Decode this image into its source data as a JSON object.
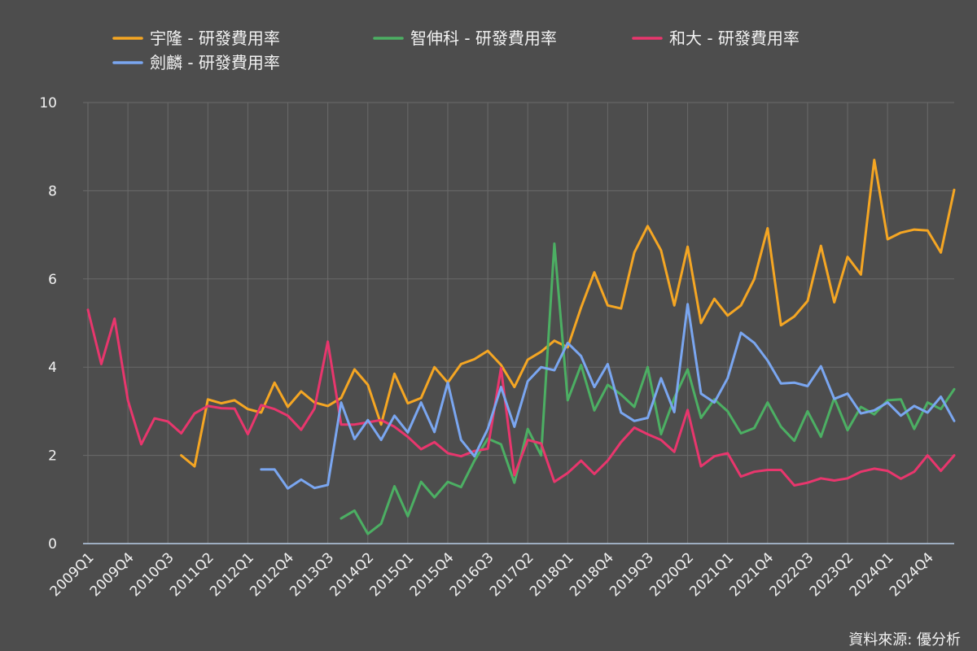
{
  "chart_data": {
    "type": "line",
    "ylim": [
      0,
      10
    ],
    "yticks": [
      0,
      2,
      4,
      6,
      8,
      10
    ],
    "grid": true,
    "legend_position": "top",
    "source": "資料來源: 優分析",
    "x": [
      "2009Q1",
      "2009Q2",
      "2009Q3",
      "2009Q4",
      "2010Q1",
      "2010Q2",
      "2010Q3",
      "2010Q4",
      "2011Q1",
      "2011Q2",
      "2011Q3",
      "2011Q4",
      "2012Q1",
      "2012Q2",
      "2012Q3",
      "2012Q4",
      "2013Q1",
      "2013Q2",
      "2013Q3",
      "2013Q4",
      "2014Q1",
      "2014Q2",
      "2014Q3",
      "2014Q4",
      "2015Q1",
      "2015Q2",
      "2015Q3",
      "2015Q4",
      "2016Q1",
      "2016Q2",
      "2016Q3",
      "2016Q4",
      "2017Q1",
      "2017Q2",
      "2017Q3",
      "2017Q4",
      "2018Q1",
      "2018Q2",
      "2018Q3",
      "2018Q4",
      "2019Q1",
      "2019Q2",
      "2019Q3",
      "2019Q4",
      "2020Q1",
      "2020Q2",
      "2020Q3",
      "2020Q4",
      "2021Q1",
      "2021Q2",
      "2021Q3",
      "2021Q4",
      "2022Q1",
      "2022Q2",
      "2022Q3",
      "2022Q4",
      "2023Q1",
      "2023Q2",
      "2023Q3",
      "2023Q4",
      "2024Q1",
      "2024Q2",
      "2024Q3",
      "2024Q4",
      "2025Q1",
      "2025Q2"
    ],
    "x_tick_labels": [
      "2009Q1",
      "2009Q4",
      "2010Q3",
      "2011Q2",
      "2012Q1",
      "2012Q4",
      "2013Q3",
      "2014Q2",
      "2015Q1",
      "2015Q4",
      "2016Q3",
      "2017Q2",
      "2018Q1",
      "2018Q4",
      "2019Q3",
      "2020Q2",
      "2021Q1",
      "2021Q4",
      "2022Q3",
      "2023Q2",
      "2024Q1",
      "2024Q4"
    ],
    "series": [
      {
        "name": "宇隆 - 研發費用率",
        "color": "#f5a623",
        "values": [
          null,
          null,
          null,
          null,
          null,
          null,
          null,
          2.0,
          1.75,
          3.27,
          3.18,
          3.25,
          3.05,
          2.97,
          3.65,
          3.1,
          3.45,
          3.2,
          3.12,
          3.3,
          3.95,
          3.6,
          2.7,
          3.85,
          3.18,
          3.3,
          4.0,
          3.65,
          4.07,
          4.18,
          4.37,
          4.05,
          3.55,
          4.17,
          4.35,
          4.6,
          4.45,
          5.35,
          6.15,
          5.4,
          5.33,
          6.6,
          7.2,
          6.65,
          5.4,
          6.73,
          5.0,
          5.55,
          5.17,
          5.4,
          6.0,
          7.15,
          4.95,
          5.15,
          5.5,
          6.75,
          5.47,
          6.5,
          6.1,
          8.7,
          6.9,
          7.05,
          7.12,
          7.1,
          6.6,
          8.02
        ]
      },
      {
        "name": "智伸科 - 研發費用率",
        "color": "#4caf63",
        "values": [
          null,
          null,
          null,
          null,
          null,
          null,
          null,
          null,
          null,
          null,
          null,
          null,
          null,
          null,
          null,
          null,
          null,
          null,
          null,
          0.57,
          0.75,
          0.22,
          0.45,
          1.3,
          0.62,
          1.4,
          1.05,
          1.4,
          1.28,
          1.88,
          2.38,
          2.25,
          1.38,
          2.6,
          2.0,
          6.8,
          3.25,
          4.05,
          3.02,
          3.6,
          3.38,
          3.1,
          4.0,
          2.48,
          3.3,
          3.95,
          2.85,
          3.27,
          3.0,
          2.5,
          2.62,
          3.2,
          2.65,
          2.33,
          3.0,
          2.42,
          3.3,
          2.57,
          3.1,
          2.93,
          3.25,
          3.27,
          2.6,
          3.2,
          3.05,
          3.5
        ]
      },
      {
        "name": "和大 - 研發費用率",
        "color": "#e8366d",
        "values": [
          5.3,
          4.07,
          5.1,
          3.25,
          2.25,
          2.84,
          2.77,
          2.5,
          2.95,
          3.12,
          3.07,
          3.06,
          2.48,
          3.14,
          3.05,
          2.9,
          2.58,
          3.06,
          4.58,
          2.7,
          2.7,
          2.75,
          2.8,
          2.65,
          2.42,
          2.14,
          2.3,
          2.05,
          1.98,
          2.1,
          2.15,
          3.98,
          1.55,
          2.35,
          2.27,
          1.4,
          1.6,
          1.88,
          1.58,
          1.88,
          2.3,
          2.63,
          2.48,
          2.35,
          2.08,
          3.03,
          1.75,
          1.98,
          2.05,
          1.52,
          1.63,
          1.67,
          1.67,
          1.32,
          1.38,
          1.48,
          1.43,
          1.48,
          1.63,
          1.7,
          1.65,
          1.47,
          1.63,
          2.0,
          1.65,
          2.0
        ]
      },
      {
        "name": "劍麟 - 研發費用率",
        "color": "#7aa6f0",
        "values": [
          null,
          null,
          null,
          null,
          null,
          null,
          null,
          null,
          null,
          null,
          null,
          null,
          null,
          1.68,
          1.68,
          1.25,
          1.45,
          1.26,
          1.33,
          3.2,
          2.37,
          2.8,
          2.35,
          2.9,
          2.52,
          3.2,
          2.53,
          3.65,
          2.35,
          1.98,
          2.6,
          3.55,
          2.65,
          3.68,
          4.0,
          3.93,
          4.55,
          4.25,
          3.55,
          4.07,
          2.97,
          2.78,
          2.85,
          3.75,
          2.98,
          5.43,
          3.4,
          3.2,
          3.75,
          4.78,
          4.55,
          4.15,
          3.63,
          3.65,
          3.57,
          4.02,
          3.28,
          3.4,
          2.95,
          3.02,
          3.2,
          2.9,
          3.12,
          2.97,
          3.33,
          2.78
        ]
      }
    ]
  }
}
